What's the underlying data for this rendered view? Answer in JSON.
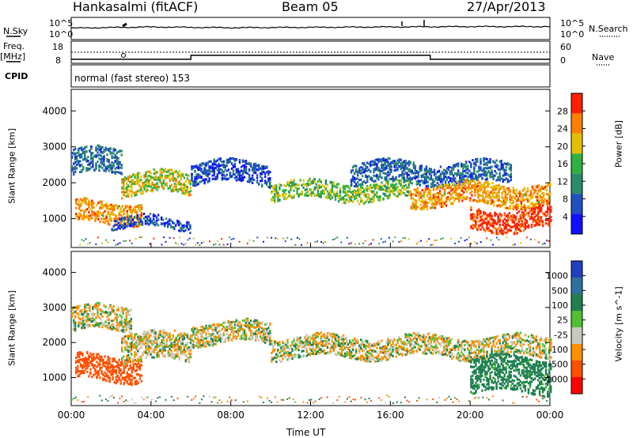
{
  "header": {
    "station": "Hankasalmi (fitACF)",
    "beam": "Beam 05",
    "date": "27/Apr/2013"
  },
  "side_labels": {
    "nsky": "N.Sky",
    "freq_line1": "Freq.",
    "freq_line2": "[MHz]",
    "cpid": "CPID",
    "nsearch": "N.Search",
    "nave": "Nave"
  },
  "top_axes": {
    "noise_left_top": "10^5",
    "noise_left_bottom": "10^0",
    "noise_right_top": "10^5",
    "noise_right_bottom": "10^0",
    "freq_left_top": "18",
    "freq_left_bottom": "8",
    "nave_right_top": "60",
    "nave_right_bottom": "0"
  },
  "cpid_text": "normal (fast stereo) 153",
  "chart_data": [
    {
      "type": "line",
      "name": "noise-panel",
      "x": [
        "00:00",
        "04:00",
        "08:00",
        "12:00",
        "16:00",
        "20:00",
        "00:00"
      ],
      "series": [
        {
          "name": "N.Sky",
          "values": [
            2.6,
            2.9,
            2.7,
            2.8,
            2.9,
            3.0,
            3.0
          ]
        },
        {
          "name": "N.Search",
          "values": [
            3.4,
            3.4,
            3.4,
            3.4,
            3.4,
            3.4,
            3.4
          ]
        }
      ],
      "ylim": [
        0,
        5
      ]
    },
    {
      "type": "line",
      "name": "freq-nave-panel",
      "x": [
        "00:00",
        "04:00",
        "06:00",
        "08:00",
        "12:00",
        "16:00",
        "18:00",
        "20:00",
        "00:00"
      ],
      "series": [
        {
          "name": "Freq",
          "values": [
            12,
            12,
            12,
            9,
            9,
            9,
            12,
            12,
            12
          ]
        },
        {
          "name": "Nave",
          "values": [
            30,
            30,
            30,
            30,
            30,
            30,
            30,
            30,
            30
          ]
        }
      ],
      "ylim": [
        8,
        18
      ]
    },
    {
      "type": "heatmap",
      "name": "power-panel",
      "ylabel": "Slant Range [km]",
      "yticks": [
        "1000",
        "2000",
        "3000",
        "4000"
      ],
      "ylim": [
        200,
        4600
      ],
      "colorbar_label": "Power [dB]",
      "colorbar_ticks": [
        "4",
        "8",
        "12",
        "16",
        "20",
        "24",
        "28"
      ],
      "colorbar_range": [
        0,
        30
      ],
      "colors": [
        "#1010ff",
        "#2050c0",
        "#2a8a6a",
        "#30b040",
        "#e0c000",
        "#ff8000",
        "#ff2000"
      ],
      "echo_bands": [
        {
          "t_start": 0.0,
          "t_end": 2.5,
          "range_center": 2600,
          "width": 350,
          "power": 8
        },
        {
          "t_start": 0.2,
          "t_end": 3.5,
          "range_center": 1200,
          "width": 300,
          "power": 22
        },
        {
          "t_start": 2.5,
          "t_end": 6.0,
          "range_center": 2000,
          "width": 300,
          "power": 18
        },
        {
          "t_start": 2.0,
          "t_end": 6.0,
          "range_center": 900,
          "width": 150,
          "power": 6
        },
        {
          "t_start": 6.0,
          "t_end": 10.0,
          "range_center": 2300,
          "width": 300,
          "power": 6
        },
        {
          "t_start": 10.0,
          "t_end": 17.0,
          "range_center": 1800,
          "width": 250,
          "power": 16
        },
        {
          "t_start": 14.0,
          "t_end": 22.0,
          "range_center": 2300,
          "width": 300,
          "power": 8
        },
        {
          "t_start": 17.0,
          "t_end": 24.0,
          "range_center": 1700,
          "width": 300,
          "power": 22
        },
        {
          "t_start": 20.0,
          "t_end": 24.0,
          "range_center": 1000,
          "width": 300,
          "power": 28
        }
      ]
    },
    {
      "type": "heatmap",
      "name": "velocity-panel",
      "ylabel": "Slant Range [km]",
      "xlabel": "Time UT",
      "xticks": [
        "00:00",
        "04:00",
        "08:00",
        "12:00",
        "16:00",
        "20:00",
        "00:00"
      ],
      "yticks": [
        "1000",
        "2000",
        "3000",
        "4000"
      ],
      "ylim": [
        200,
        4600
      ],
      "colorbar_label": "Velocity [m s^-1]",
      "colorbar_ticks": [
        "1000",
        "500",
        "100",
        "25",
        "-25",
        "-100",
        "-500",
        "-1000"
      ],
      "colors": [
        "#2040c0",
        "#3070a0",
        "#208050",
        "#50c030",
        "#c8c8c0",
        "#ff9000",
        "#ff5000",
        "#ff0000"
      ],
      "echo_bands": [
        {
          "t_start": 0.0,
          "t_end": 3.0,
          "range_center": 2700,
          "width": 350,
          "velocity": 0
        },
        {
          "t_start": 0.2,
          "t_end": 3.5,
          "range_center": 1300,
          "width": 350,
          "velocity": -300
        },
        {
          "t_start": 2.5,
          "t_end": 6.0,
          "range_center": 1900,
          "width": 400,
          "velocity": 0
        },
        {
          "t_start": 6.0,
          "t_end": 10.0,
          "range_center": 2300,
          "width": 300,
          "velocity": 0
        },
        {
          "t_start": 10.0,
          "t_end": 24.0,
          "range_center": 1900,
          "width": 300,
          "velocity": 0
        },
        {
          "t_start": 20.0,
          "t_end": 24.0,
          "range_center": 1100,
          "width": 500,
          "velocity": 150
        }
      ]
    }
  ],
  "xaxis": {
    "ticks": [
      "00:00",
      "04:00",
      "08:00",
      "12:00",
      "16:00",
      "20:00",
      "00:00"
    ],
    "label": "Time UT"
  }
}
